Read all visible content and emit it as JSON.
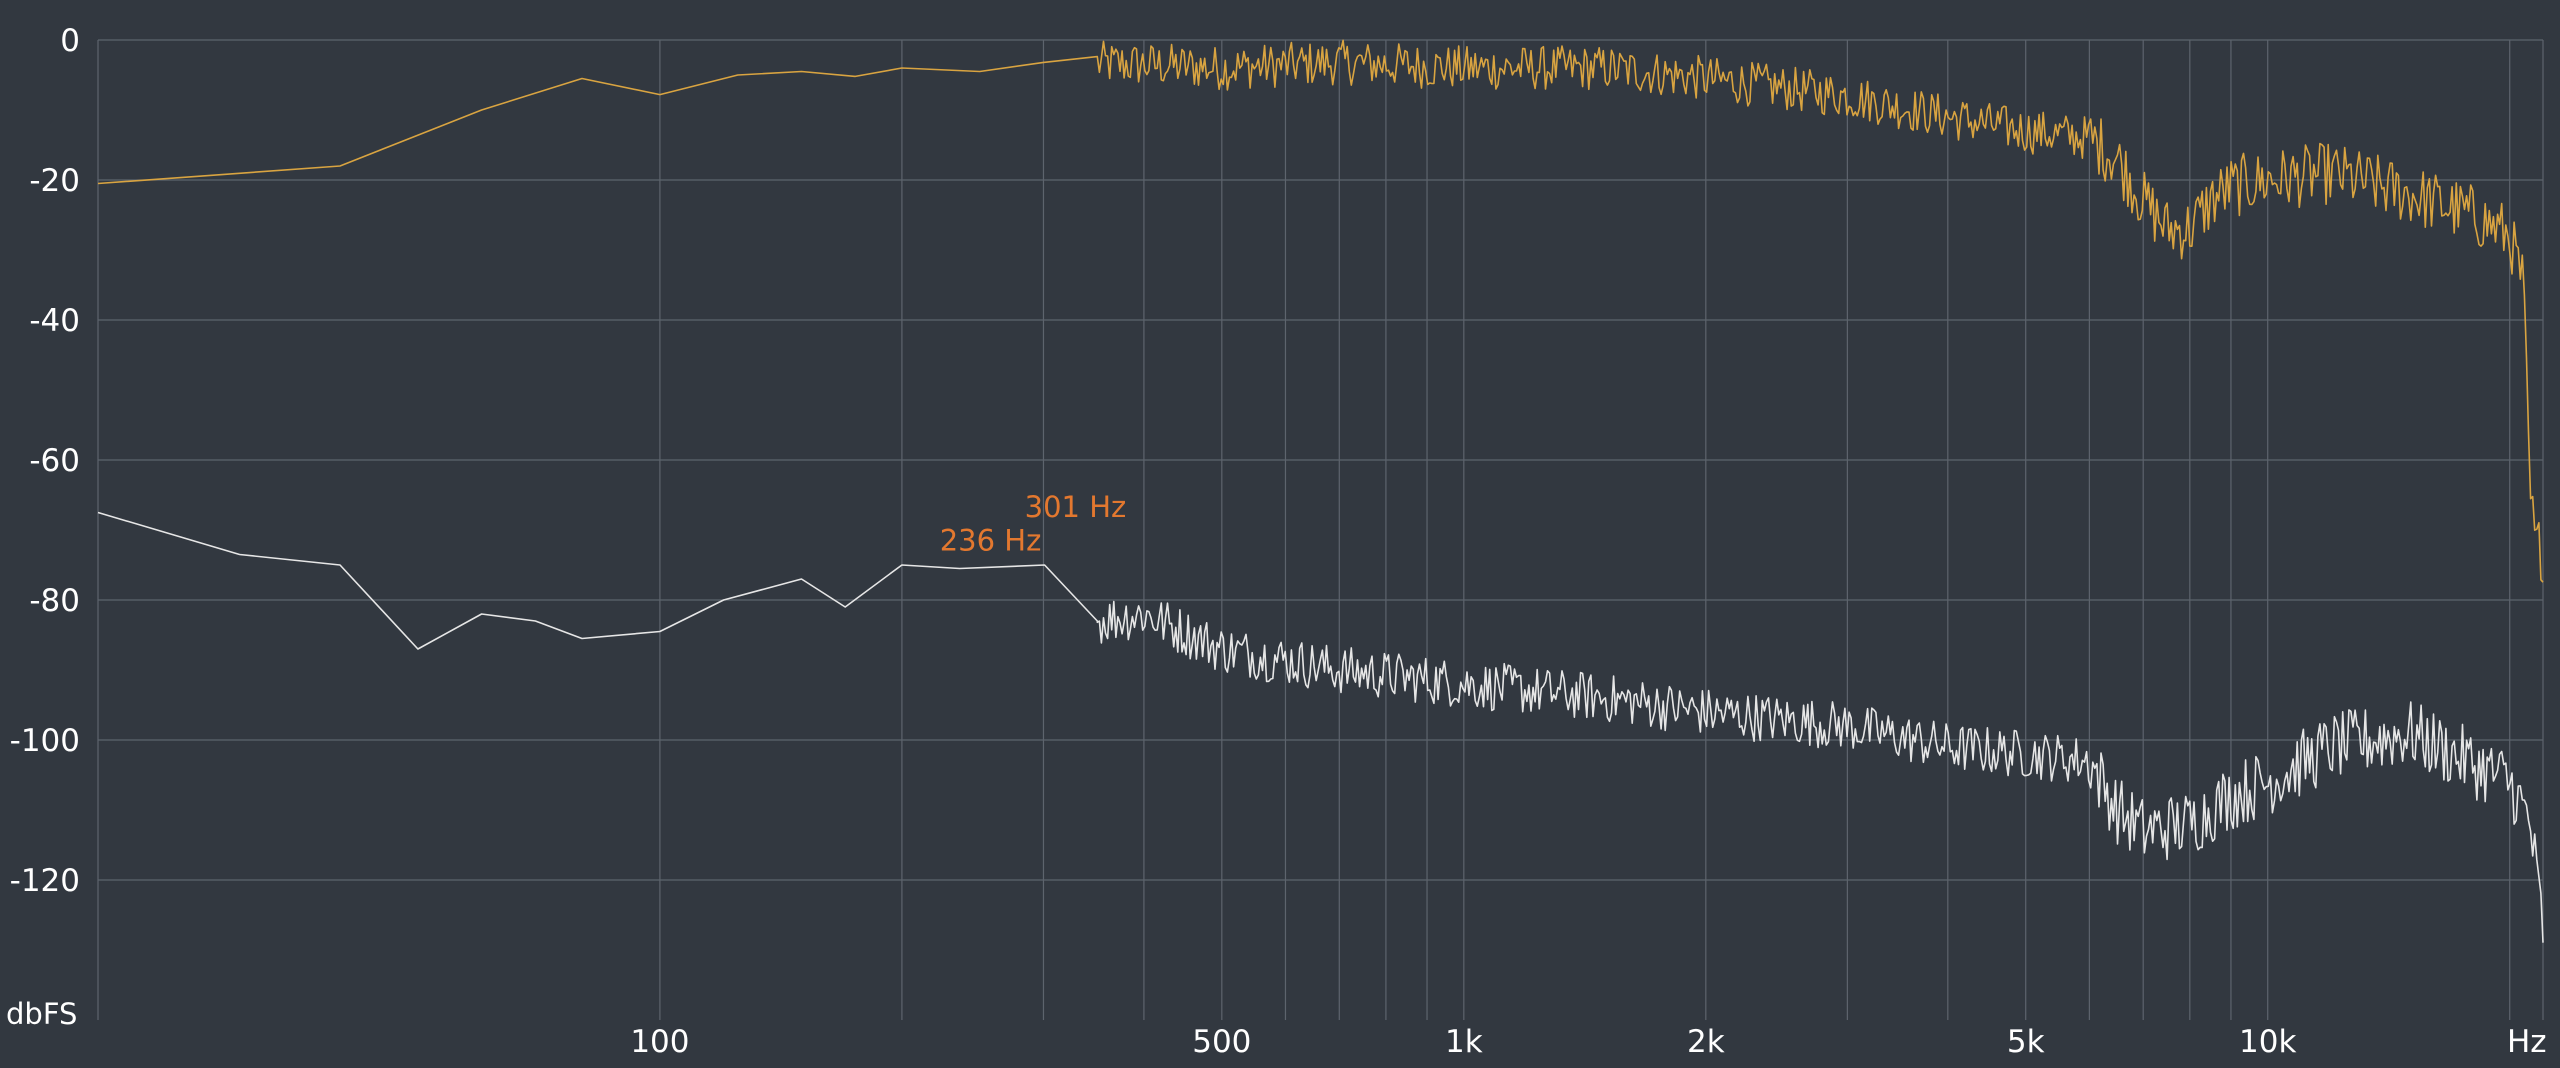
{
  "chart_data": {
    "type": "line",
    "x_scale": "log",
    "xlim": [
      20,
      22000
    ],
    "ylim": [
      -140,
      0
    ],
    "grid": true,
    "ylabel": "dbFS",
    "y_ticks": [
      0,
      -20,
      -40,
      -60,
      -80,
      -100,
      -120
    ],
    "x_ticks": [
      {
        "value": 100,
        "label": "100"
      },
      {
        "value": 500,
        "label": "500"
      },
      {
        "value": 1000,
        "label": "1k"
      },
      {
        "value": 2000,
        "label": "2k"
      },
      {
        "value": 5000,
        "label": "5k"
      },
      {
        "value": 10000,
        "label": "10k"
      },
      {
        "value": 21000,
        "label": "Hz"
      }
    ],
    "x_grid": [
      100,
      200,
      300,
      400,
      500,
      600,
      700,
      800,
      900,
      1000,
      2000,
      3000,
      4000,
      5000,
      6000,
      7000,
      8000,
      9000,
      10000,
      20000
    ],
    "colors": {
      "background": "#323840",
      "grid": "#5d646d",
      "series_1": "#d9a441",
      "series_2": "#e6e6e6",
      "annotation": "#e3782f"
    },
    "series": [
      {
        "color": "#d9a441",
        "noise": 3.2,
        "points": [
          [
            20,
            -20.5
          ],
          [
            40,
            -18
          ],
          [
            60,
            -10
          ],
          [
            80,
            -5.5
          ],
          [
            100,
            -7.8
          ],
          [
            125,
            -5
          ],
          [
            150,
            -4.5
          ],
          [
            175,
            -5.2
          ],
          [
            200,
            -4
          ],
          [
            250,
            -4.5
          ],
          [
            300,
            -3.2
          ],
          [
            400,
            -3.5
          ],
          [
            500,
            -4
          ],
          [
            700,
            -3.2
          ],
          [
            1000,
            -4
          ],
          [
            1500,
            -4
          ],
          [
            2000,
            -5.5
          ],
          [
            3000,
            -8
          ],
          [
            4000,
            -11
          ],
          [
            5000,
            -13
          ],
          [
            6000,
            -14
          ],
          [
            6500,
            -17
          ],
          [
            7000,
            -23
          ],
          [
            7500,
            -27
          ],
          [
            8000,
            -27
          ],
          [
            8500,
            -23
          ],
          [
            9000,
            -21
          ],
          [
            10000,
            -20
          ],
          [
            12000,
            -19
          ],
          [
            15000,
            -22
          ],
          [
            18000,
            -25
          ],
          [
            20000,
            -28
          ],
          [
            20800,
            -35
          ],
          [
            21200,
            -65
          ],
          [
            21500,
            -72
          ],
          [
            22000,
            -73
          ]
        ],
        "samples": 700
      },
      {
        "color": "#e6e6e6",
        "noise": 3.5,
        "points": [
          [
            20,
            -67.5
          ],
          [
            30,
            -73.5
          ],
          [
            40,
            -75
          ],
          [
            50,
            -87
          ],
          [
            60,
            -82
          ],
          [
            70,
            -83
          ],
          [
            80,
            -85.5
          ],
          [
            100,
            -84.5
          ],
          [
            120,
            -80
          ],
          [
            150,
            -77
          ],
          [
            170,
            -81
          ],
          [
            200,
            -75
          ],
          [
            236,
            -75.5
          ],
          [
            301,
            -75
          ],
          [
            350,
            -83
          ],
          [
            400,
            -82
          ],
          [
            500,
            -87
          ],
          [
            700,
            -90
          ],
          [
            1000,
            -92
          ],
          [
            1500,
            -94
          ],
          [
            2000,
            -96
          ],
          [
            3000,
            -98
          ],
          [
            4000,
            -101
          ],
          [
            5000,
            -102
          ],
          [
            6000,
            -103
          ],
          [
            6500,
            -110
          ],
          [
            7000,
            -113
          ],
          [
            8000,
            -112
          ],
          [
            9000,
            -108
          ],
          [
            10000,
            -106
          ],
          [
            12000,
            -101
          ],
          [
            15000,
            -99
          ],
          [
            17000,
            -102
          ],
          [
            20000,
            -106
          ],
          [
            21200,
            -112
          ],
          [
            22000,
            -127
          ]
        ],
        "samples": 700
      }
    ],
    "annotations": [
      {
        "x": 236,
        "y": -75.5,
        "label": "236 Hz"
      },
      {
        "x": 301,
        "y": -75,
        "label": "301 Hz"
      }
    ]
  }
}
